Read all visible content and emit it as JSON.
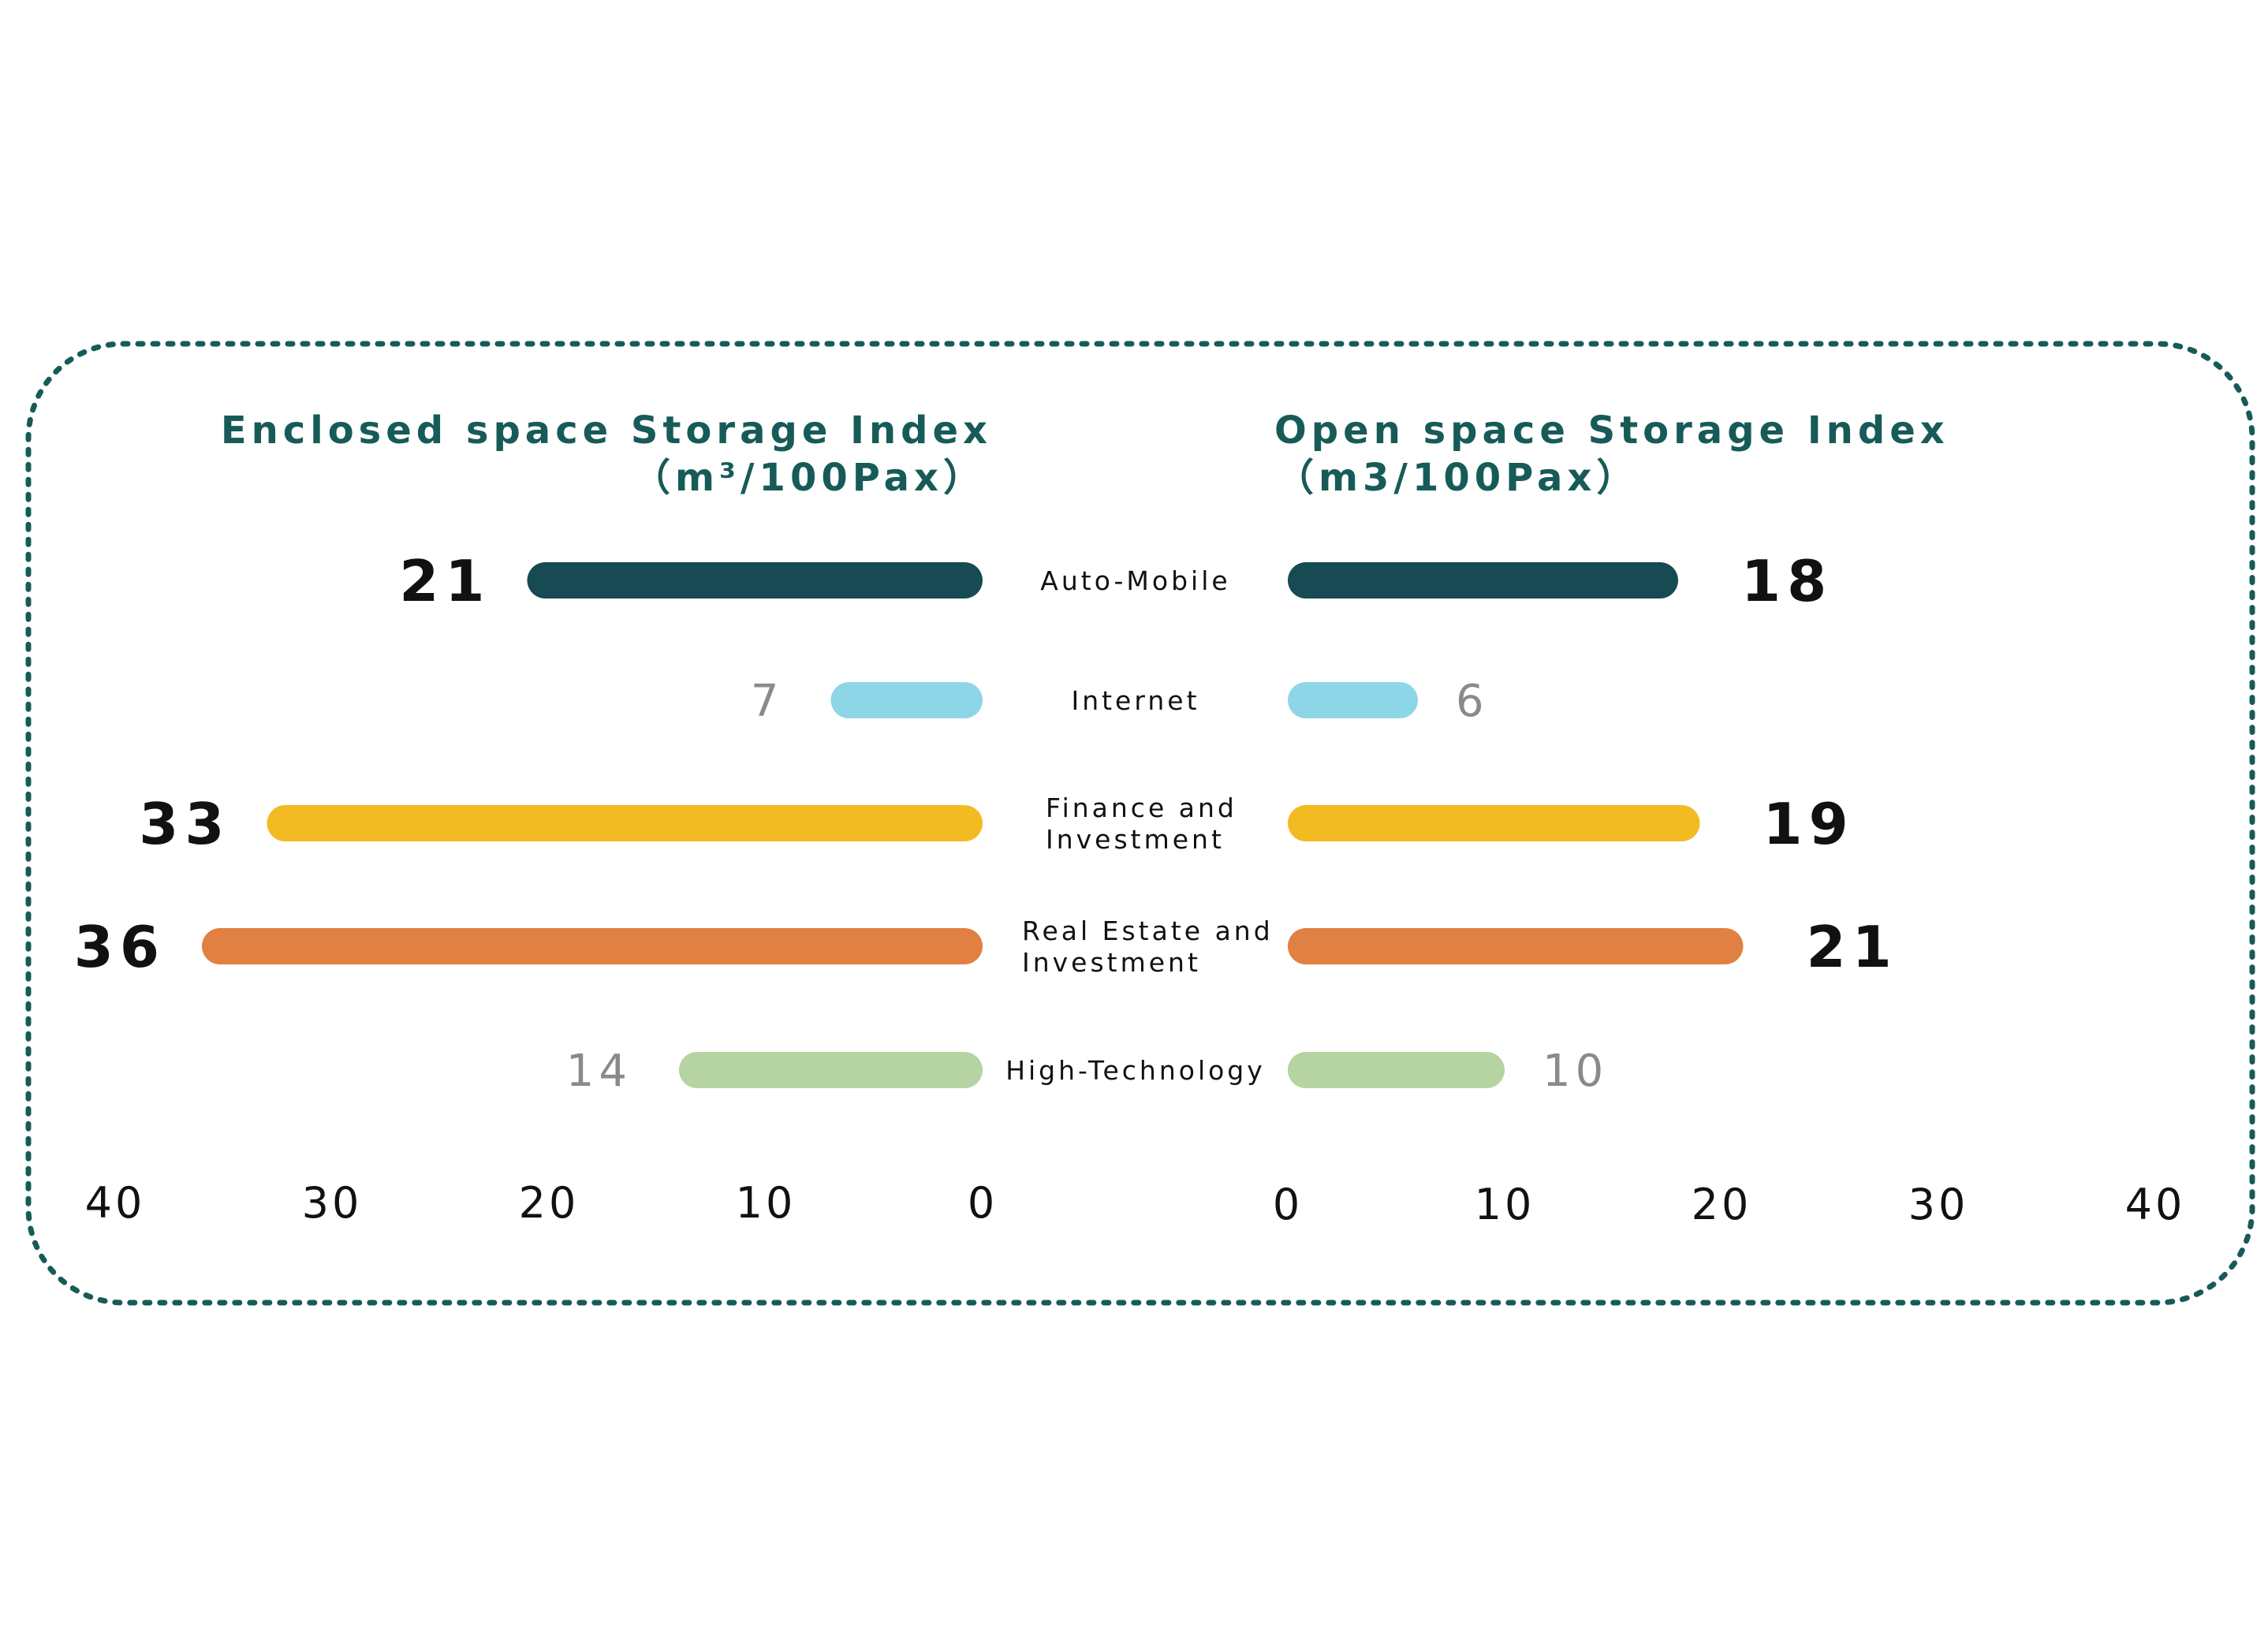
{
  "chart_data": {
    "type": "bar",
    "categories": [
      [
        "Auto-Mobile"
      ],
      [
        "Internet"
      ],
      [
        "Finance and",
        "Investment"
      ],
      [
        "Real Estate and",
        "Investment"
      ],
      [
        "High-Technology"
      ]
    ],
    "colors": [
      "#174a52",
      "#8dd6e8",
      "#f3bb22",
      "#e08042",
      "#b6d3a2"
    ],
    "label_emphasis": [
      "bold",
      "light",
      "bold",
      "bold",
      "light"
    ],
    "left_panel": {
      "title": [
        "Enclosed space Storage Index",
        "（m³/100Pax）"
      ],
      "values": [
        21,
        7,
        33,
        36,
        14
      ],
      "xlim": [
        40,
        0
      ],
      "ticks": [
        "40",
        "30",
        "20",
        "10",
        "0"
      ]
    },
    "right_panel": {
      "title": [
        "Open space Storage Index",
        "（m3/100Pax）"
      ],
      "values": [
        18,
        6,
        19,
        21,
        10
      ],
      "xlim": [
        0,
        40
      ],
      "ticks": [
        "0",
        "10",
        "20",
        "30",
        "40"
      ]
    },
    "grid": false,
    "frame_color": "#175b58",
    "title_color": "#175b58"
  }
}
